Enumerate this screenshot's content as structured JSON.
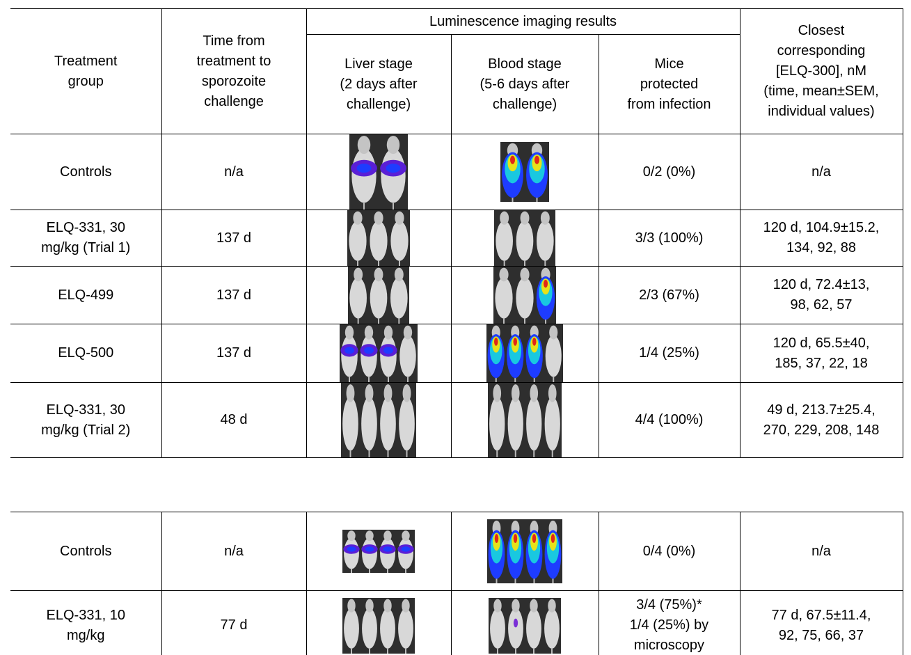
{
  "table1": {
    "header": {
      "group": "Treatment\ngroup",
      "time": "Time from\ntreatment to\nsporozoite\nchallenge",
      "imaging": "Luminescence imaging results",
      "liver": "Liver stage\n(2 days after\nchallenge)",
      "blood": "Blood stage\n(5-6 days after\nchallenge)",
      "protected": "Mice\nprotected\nfrom infection",
      "concentration": "Closest\ncorresponding\n[ELQ-300], nM\n(time, mean±SEM,\nindividual values)"
    },
    "rows": [
      {
        "group": "Controls",
        "time": "n/a",
        "protected": "0/2 (0%)",
        "concentration": "n/a"
      },
      {
        "group": "ELQ-331, 30\nmg/kg (Trial 1)",
        "time": "137 d",
        "protected": "3/3 (100%)",
        "concentration": "120 d, 104.9±15.2,\n134, 92, 88"
      },
      {
        "group": "ELQ-499",
        "time": "137 d",
        "protected": "2/3 (67%)",
        "concentration": "120 d, 72.4±13,\n98, 62, 57"
      },
      {
        "group": "ELQ-500",
        "time": "137 d",
        "protected": "1/4 (25%)",
        "concentration": "120 d, 65.5±40,\n185, 37, 22, 18"
      },
      {
        "group": "ELQ-331, 30\nmg/kg (Trial 2)",
        "time": "48 d",
        "protected": "4/4 (100%)",
        "concentration": "49 d, 213.7±25.4,\n270, 229, 208, 148"
      }
    ]
  },
  "table2": {
    "rows": [
      {
        "group": "Controls",
        "time": "n/a",
        "protected": "0/4 (0%)",
        "concentration": "n/a"
      },
      {
        "group": "ELQ-331, 10\nmg/kg",
        "time": "77 d",
        "protected": "3/4 (75%)*\n1/4 (25%) by\nmicroscopy",
        "concentration": "77 d, 67.5±11.4,\n92, 75, 66, 37"
      }
    ]
  }
}
